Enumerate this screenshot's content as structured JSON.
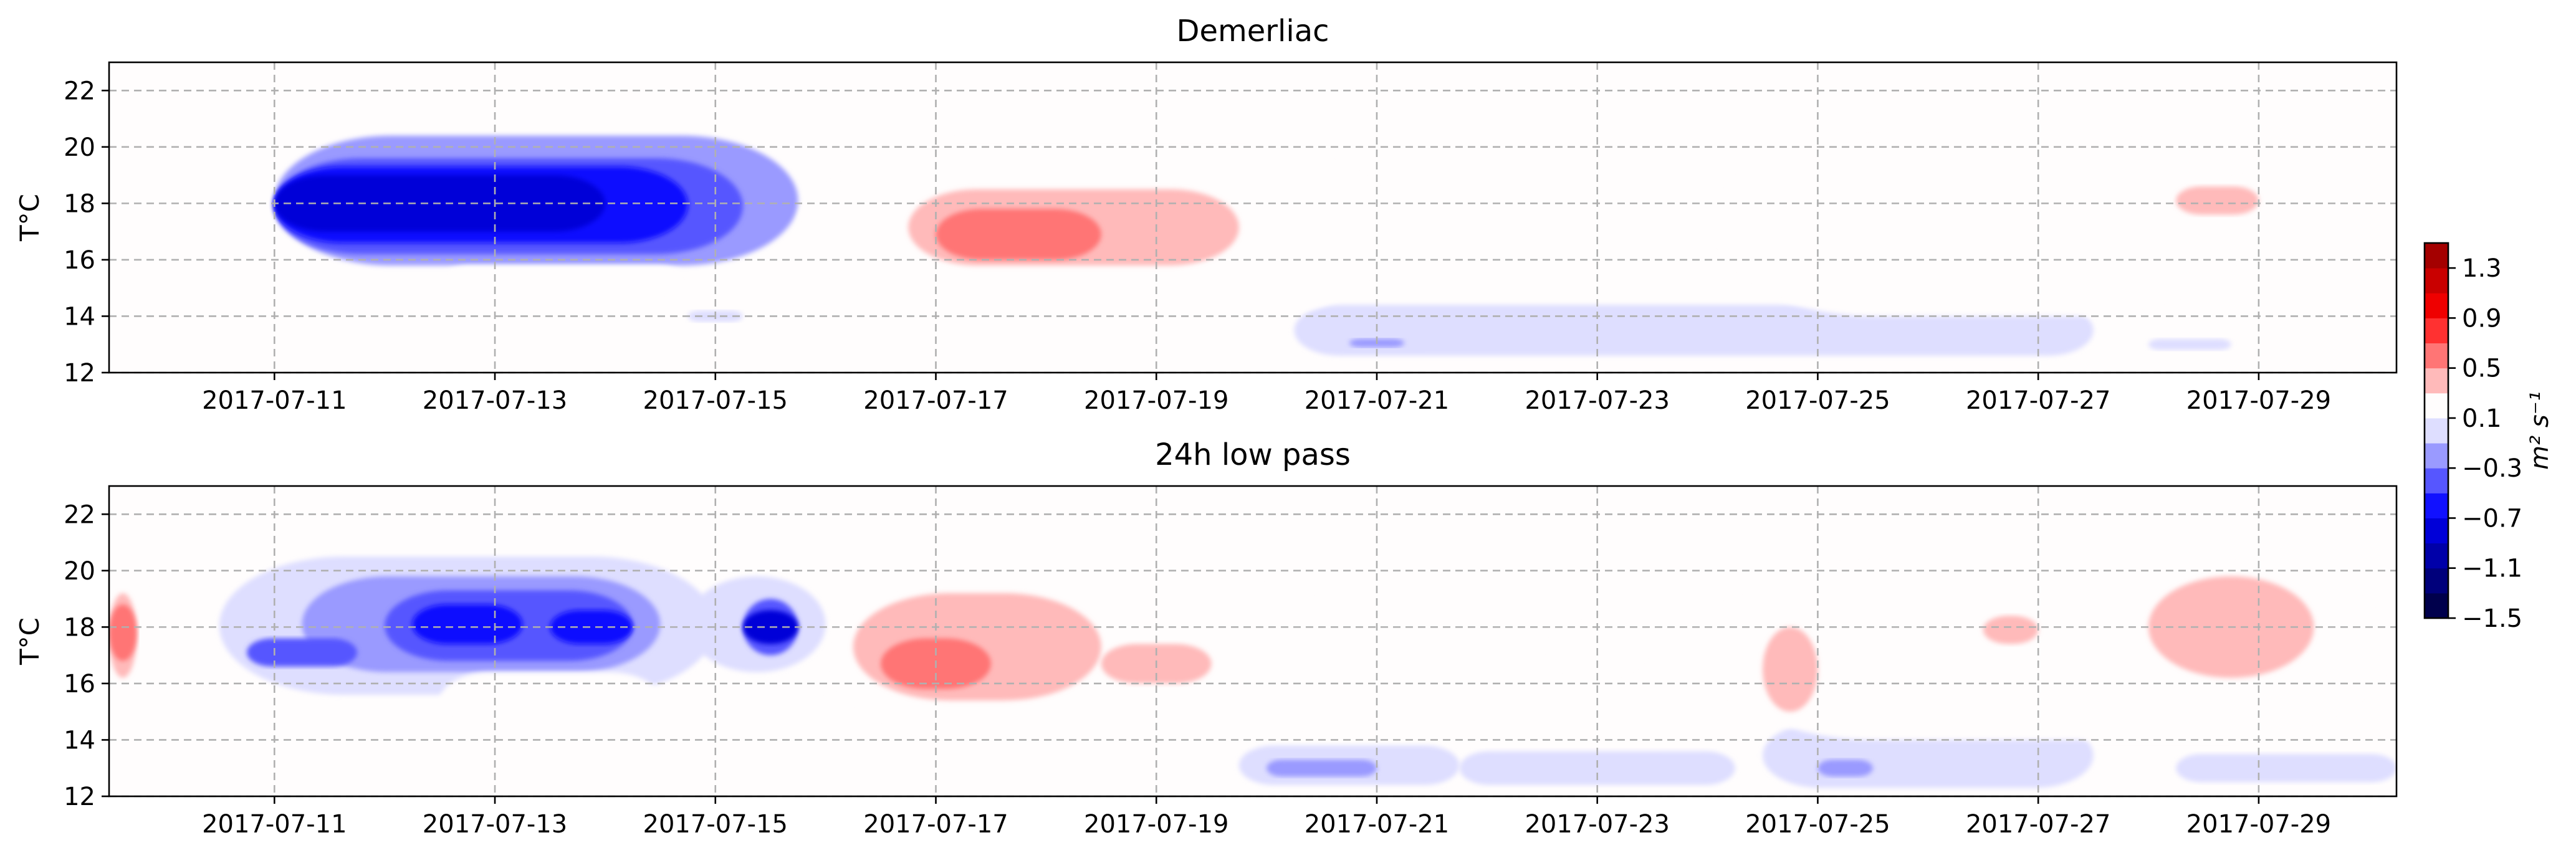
{
  "chart_data": [
    {
      "type": "contour",
      "title": "Demerliac",
      "ylabel": "T°C",
      "xlim": [
        "2017-07-09 12:00",
        "2017-07-30 06:00"
      ],
      "ylim": [
        12,
        23
      ],
      "x_ticks": [
        "2017-07-11",
        "2017-07-13",
        "2017-07-15",
        "2017-07-17",
        "2017-07-19",
        "2017-07-21",
        "2017-07-23",
        "2017-07-25",
        "2017-07-27",
        "2017-07-29"
      ],
      "y_ticks": [
        12,
        14,
        16,
        18,
        20,
        22
      ],
      "grid": true,
      "regions": [
        {
          "sign": "negative",
          "level": -0.3,
          "x_range": [
            "2017-07-11 00:00",
            "2017-07-15 18:00"
          ],
          "y_range": [
            15.8,
            20.4
          ],
          "center": [
            "2017-07-13 00:00",
            18.0
          ]
        },
        {
          "sign": "negative",
          "level": -0.5,
          "x_range": [
            "2017-07-11 00:00",
            "2017-07-15 06:00"
          ],
          "y_range": [
            16.2,
            19.6
          ],
          "center": [
            "2017-07-13 00:00",
            18.0
          ]
        },
        {
          "sign": "negative",
          "level": -0.7,
          "x_range": [
            "2017-07-11 00:00",
            "2017-07-14 18:00"
          ],
          "y_range": [
            16.6,
            19.3
          ],
          "center": [
            "2017-07-12 18:00",
            18.0
          ]
        },
        {
          "sign": "negative",
          "level": -0.9,
          "x_range": [
            "2017-07-11 00:00",
            "2017-07-14 00:00"
          ],
          "y_range": [
            17.0,
            19.0
          ],
          "center": [
            "2017-07-12 18:00",
            18.0
          ]
        },
        {
          "sign": "negative",
          "level": -0.1,
          "x_range": [
            "2017-07-20 06:00",
            "2017-07-27 12:00"
          ],
          "y_range": [
            12.6,
            14.4
          ],
          "center": [
            "2017-07-23 12:00",
            13.3
          ]
        },
        {
          "sign": "negative",
          "level": -0.3,
          "x_range": [
            "2017-07-20 18:00",
            "2017-07-21 06:00"
          ],
          "y_range": [
            12.9,
            13.2
          ],
          "center": [
            "2017-07-21 00:00",
            13.0
          ]
        },
        {
          "sign": "negative",
          "level": -0.1,
          "x_range": [
            "2017-07-14 18:00",
            "2017-07-15 06:00"
          ],
          "y_range": [
            13.8,
            14.2
          ],
          "center": [
            "2017-07-15 00:00",
            14.0
          ]
        },
        {
          "sign": "negative",
          "level": -0.1,
          "x_range": [
            "2017-07-28 00:00",
            "2017-07-28 18:00"
          ],
          "y_range": [
            12.8,
            13.2
          ],
          "center": [
            "2017-07-28 12:00",
            13.0
          ]
        },
        {
          "sign": "positive",
          "level": 0.1,
          "x_range": [
            "2017-07-15 18:00",
            "2017-07-21 06:00"
          ],
          "y_range": [
            14.0,
            20.2
          ],
          "center": [
            "2017-07-18 06:00",
            17.0
          ]
        },
        {
          "sign": "positive",
          "level": 0.3,
          "x_range": [
            "2017-07-16 18:00",
            "2017-07-19 18:00"
          ],
          "y_range": [
            15.8,
            18.5
          ],
          "center": [
            "2017-07-17 18:00",
            17.0
          ]
        },
        {
          "sign": "positive",
          "level": 0.5,
          "x_range": [
            "2017-07-17 00:00",
            "2017-07-18 12:00"
          ],
          "y_range": [
            16.0,
            17.8
          ],
          "center": [
            "2017-07-17 12:00",
            16.8
          ]
        },
        {
          "sign": "positive",
          "level": 0.1,
          "x_range": [
            "2017-07-12 12:00",
            "2017-07-14 18:00"
          ],
          "y_range": [
            14.6,
            15.8
          ],
          "center": [
            "2017-07-13 12:00",
            15.2
          ]
        },
        {
          "sign": "positive",
          "level": 0.1,
          "x_range": [
            "2017-07-24 00:00",
            "2017-07-29 00:00"
          ],
          "y_range": [
            14.0,
            20.6
          ],
          "center": [
            "2017-07-26 12:00",
            17.0
          ]
        },
        {
          "sign": "positive",
          "level": 0.3,
          "x_range": [
            "2017-07-28 06:00",
            "2017-07-29 00:00"
          ],
          "y_range": [
            17.6,
            18.6
          ],
          "center": [
            "2017-07-28 18:00",
            18.0
          ]
        },
        {
          "sign": "positive",
          "level": 0.1,
          "x_range": [
            "2017-07-22 12:00",
            "2017-07-22 18:00"
          ],
          "y_range": [
            14.9,
            15.1
          ],
          "center": [
            "2017-07-22 12:00",
            15.0
          ]
        }
      ]
    },
    {
      "type": "contour",
      "title": "24h low pass",
      "ylabel": "T°C",
      "xlim": [
        "2017-07-09 12:00",
        "2017-07-30 06:00"
      ],
      "ylim": [
        12,
        23
      ],
      "x_ticks": [
        "2017-07-11",
        "2017-07-13",
        "2017-07-15",
        "2017-07-17",
        "2017-07-19",
        "2017-07-21",
        "2017-07-23",
        "2017-07-25",
        "2017-07-27",
        "2017-07-29"
      ],
      "y_ticks": [
        12,
        14,
        16,
        18,
        20,
        22
      ],
      "grid": true,
      "regions": [
        {
          "sign": "positive",
          "level": 0.1,
          "x_range": [
            "2017-07-09 12:00",
            "2017-07-10 00:00"
          ],
          "y_range": [
            15.6,
            19.8
          ],
          "center": [
            "2017-07-09 12:00",
            17.8
          ]
        },
        {
          "sign": "positive",
          "level": 0.3,
          "x_range": [
            "2017-07-09 12:00",
            "2017-07-09 18:00"
          ],
          "y_range": [
            16.2,
            19.2
          ],
          "center": [
            "2017-07-09 12:00",
            17.8
          ]
        },
        {
          "sign": "positive",
          "level": 0.5,
          "x_range": [
            "2017-07-09 12:00",
            "2017-07-09 18:00"
          ],
          "y_range": [
            16.8,
            18.8
          ],
          "center": [
            "2017-07-09 12:00",
            17.8
          ]
        },
        {
          "sign": "negative",
          "level": -0.1,
          "x_range": [
            "2017-07-10 12:00",
            "2017-07-15 00:00"
          ],
          "y_range": [
            15.6,
            20.5
          ],
          "center": [
            "2017-07-12 18:00",
            17.8
          ]
        },
        {
          "sign": "negative",
          "level": -0.3,
          "x_range": [
            "2017-07-11 06:00",
            "2017-07-14 12:00"
          ],
          "y_range": [
            16.4,
            19.8
          ],
          "center": [
            "2017-07-12 18:00",
            17.8
          ]
        },
        {
          "sign": "negative",
          "level": -0.5,
          "x_range": [
            "2017-07-12 00:00",
            "2017-07-14 06:00"
          ],
          "y_range": [
            16.8,
            19.3
          ],
          "center": [
            "2017-07-13 00:00",
            18.0
          ]
        },
        {
          "sign": "negative",
          "level": -0.7,
          "x_range": [
            "2017-07-12 06:00",
            "2017-07-13 06:00"
          ],
          "y_range": [
            17.4,
            18.8
          ],
          "center": [
            "2017-07-12 18:00",
            18.1
          ]
        },
        {
          "sign": "negative",
          "level": -0.7,
          "x_range": [
            "2017-07-13 12:00",
            "2017-07-14 06:00"
          ],
          "y_range": [
            17.4,
            18.6
          ],
          "center": [
            "2017-07-13 18:00",
            18.0
          ]
        },
        {
          "sign": "negative",
          "level": -0.5,
          "x_range": [
            "2017-07-10 18:00",
            "2017-07-11 18:00"
          ],
          "y_range": [
            16.6,
            17.6
          ],
          "center": [
            "2017-07-11 06:00",
            17.1
          ]
        },
        {
          "sign": "negative",
          "level": -0.1,
          "x_range": [
            "2017-07-14 18:00",
            "2017-07-16 00:00"
          ],
          "y_range": [
            16.4,
            19.8
          ],
          "center": [
            "2017-07-15 12:00",
            18.0
          ]
        },
        {
          "sign": "negative",
          "level": -0.5,
          "x_range": [
            "2017-07-15 06:00",
            "2017-07-15 18:00"
          ],
          "y_range": [
            17.0,
            19.0
          ],
          "center": [
            "2017-07-15 12:00",
            18.0
          ]
        },
        {
          "sign": "negative",
          "level": -0.9,
          "x_range": [
            "2017-07-15 06:00",
            "2017-07-15 18:00"
          ],
          "y_range": [
            17.4,
            18.6
          ],
          "center": [
            "2017-07-15 12:00",
            18.0
          ]
        },
        {
          "sign": "positive",
          "level": 0.1,
          "x_range": [
            "2017-07-16 00:00",
            "2017-07-21 00:00"
          ],
          "y_range": [
            13.8,
            19.8
          ],
          "center": [
            "2017-07-18 06:00",
            17.0
          ]
        },
        {
          "sign": "positive",
          "level": 0.3,
          "x_range": [
            "2017-07-16 06:00",
            "2017-07-18 12:00"
          ],
          "y_range": [
            15.4,
            19.2
          ],
          "center": [
            "2017-07-17 06:00",
            17.0
          ]
        },
        {
          "sign": "positive",
          "level": 0.5,
          "x_range": [
            "2017-07-16 12:00",
            "2017-07-17 12:00"
          ],
          "y_range": [
            15.8,
            17.6
          ],
          "center": [
            "2017-07-17 00:00",
            16.8
          ]
        },
        {
          "sign": "positive",
          "level": 0.3,
          "x_range": [
            "2017-07-18 12:00",
            "2017-07-19 12:00"
          ],
          "y_range": [
            16.0,
            17.4
          ],
          "center": [
            "2017-07-19 00:00",
            16.8
          ]
        },
        {
          "sign": "negative",
          "level": -0.1,
          "x_range": [
            "2017-07-19 18:00",
            "2017-07-21 18:00"
          ],
          "y_range": [
            12.4,
            13.8
          ],
          "center": [
            "2017-07-20 12:00",
            13.0
          ]
        },
        {
          "sign": "negative",
          "level": -0.3,
          "x_range": [
            "2017-07-20 00:00",
            "2017-07-21 00:00"
          ],
          "y_range": [
            12.7,
            13.3
          ],
          "center": [
            "2017-07-20 12:00",
            13.0
          ]
        },
        {
          "sign": "negative",
          "level": -0.1,
          "x_range": [
            "2017-07-21 18:00",
            "2017-07-24 06:00"
          ],
          "y_range": [
            12.4,
            13.6
          ],
          "center": [
            "2017-07-23 00:00",
            13.0
          ]
        },
        {
          "sign": "negative",
          "level": -0.1,
          "x_range": [
            "2017-07-24 12:00",
            "2017-07-27 12:00"
          ],
          "y_range": [
            12.3,
            14.6
          ],
          "center": [
            "2017-07-25 18:00",
            13.3
          ]
        },
        {
          "sign": "negative",
          "level": -0.3,
          "x_range": [
            "2017-07-25 00:00",
            "2017-07-25 12:00"
          ],
          "y_range": [
            12.7,
            13.3
          ],
          "center": [
            "2017-07-25 06:00",
            13.0
          ]
        },
        {
          "sign": "negative",
          "level": -0.1,
          "x_range": [
            "2017-07-28 06:00",
            "2017-07-30 06:00"
          ],
          "y_range": [
            12.5,
            13.5
          ],
          "center": [
            "2017-07-29 12:00",
            13.0
          ]
        },
        {
          "sign": "positive",
          "level": 0.1,
          "x_range": [
            "2017-07-24 00:00",
            "2017-07-30 06:00"
          ],
          "y_range": [
            14.0,
            20.5
          ],
          "center": [
            "2017-07-27 06:00",
            17.0
          ]
        },
        {
          "sign": "positive",
          "level": 0.3,
          "x_range": [
            "2017-07-28 00:00",
            "2017-07-29 12:00"
          ],
          "y_range": [
            16.2,
            19.8
          ],
          "center": [
            "2017-07-28 18:00",
            17.5
          ]
        },
        {
          "sign": "positive",
          "level": 0.3,
          "x_range": [
            "2017-07-24 12:00",
            "2017-07-25 00:00"
          ],
          "y_range": [
            15.0,
            18.0
          ],
          "center": [
            "2017-07-24 18:00",
            16.5
          ]
        },
        {
          "sign": "positive",
          "level": 0.3,
          "x_range": [
            "2017-07-26 12:00",
            "2017-07-27 00:00"
          ],
          "y_range": [
            17.4,
            18.4
          ],
          "center": [
            "2017-07-26 18:00",
            17.9
          ]
        },
        {
          "sign": "positive",
          "level": 0.1,
          "x_range": [
            "2017-07-22 12:00",
            "2017-07-23 12:00"
          ],
          "y_range": [
            16.0,
            18.4
          ],
          "center": [
            "2017-07-23 00:00",
            17.2
          ]
        },
        {
          "sign": "positive",
          "level": 0.1,
          "x_range": [
            "2017-07-12 12:00",
            "2017-07-14 12:00"
          ],
          "y_range": [
            14.4,
            16.4
          ],
          "center": [
            "2017-07-13 12:00",
            15.4
          ]
        },
        {
          "sign": "positive",
          "level": 0.1,
          "x_range": [
            "2017-07-15 12:00",
            "2017-07-16 00:00"
          ],
          "y_range": [
            14.4,
            16.2
          ],
          "center": [
            "2017-07-15 12:00",
            15.3
          ]
        }
      ]
    }
  ],
  "colorbar": {
    "label": "m² s⁻¹",
    "ticks": [
      -1.5,
      -1.1,
      -0.7,
      -0.3,
      0.1,
      0.5,
      0.9,
      1.3
    ],
    "tick_labels": [
      "−1.5",
      "−1.1",
      "−0.7",
      "−0.3",
      "0.1",
      "0.5",
      "0.9",
      "1.3"
    ],
    "range": [
      -1.5,
      1.5
    ],
    "levels": [
      -1.5,
      -1.3,
      -1.1,
      -0.9,
      -0.7,
      -0.5,
      -0.3,
      -0.1,
      0.1,
      0.3,
      0.5,
      0.7,
      0.9,
      1.1,
      1.3,
      1.5
    ],
    "colormap": "seismic",
    "colors": [
      "#00004c",
      "#00007b",
      "#0000a9",
      "#0000d8",
      "#1111ff",
      "#5656ff",
      "#9a9aff",
      "#dedeff",
      "#fffdfd",
      "#ffbaba",
      "#ff7575",
      "#ff3131",
      "#ef0000",
      "#c90000",
      "#a40000"
    ]
  }
}
